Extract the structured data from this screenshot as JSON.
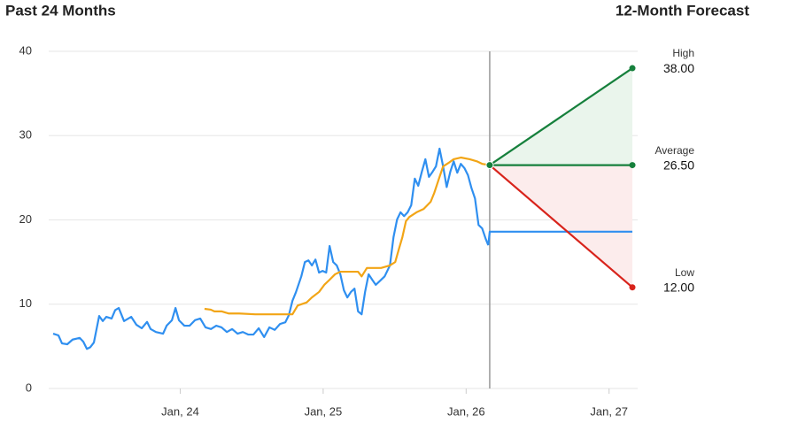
{
  "chart_data": {
    "type": "line",
    "title": "Past 24 Months",
    "forecast_title": "12-Month Forecast",
    "xlim": [
      2023.08,
      2027.2
    ],
    "xticks": [
      {
        "value": 2024,
        "label": "Jan, 24"
      },
      {
        "value": 2025,
        "label": "Jan, 25"
      },
      {
        "value": 2026,
        "label": "Jan, 26"
      },
      {
        "value": 2027,
        "label": "Jan, 27"
      }
    ],
    "ylim": [
      0,
      40
    ],
    "yticks": [
      0,
      10,
      20,
      30,
      40
    ],
    "grid": true,
    "series": [
      {
        "color": "#2f8ff0",
        "x": [
          2023.111,
          2023.148,
          2023.173,
          2023.21,
          2023.247,
          2023.297,
          2023.322,
          2023.347,
          2023.371,
          2023.396,
          2023.433,
          2023.458,
          2023.483,
          2023.52,
          2023.545,
          2023.57,
          2023.607,
          2023.657,
          2023.694,
          2023.731,
          2023.768,
          2023.793,
          2023.83,
          2023.88,
          2023.905,
          2023.942,
          2023.967,
          2023.991,
          2024.029,
          2024.066,
          2024.103,
          2024.14,
          2024.177,
          2024.215,
          2024.252,
          2024.289,
          2024.326,
          2024.363,
          2024.401,
          2024.438,
          2024.475,
          2024.512,
          2024.549,
          2024.587,
          2024.624,
          2024.661,
          2024.698,
          2024.735,
          2024.76,
          2024.785,
          2024.81,
          2024.847,
          2024.872,
          2024.897,
          2024.921,
          2024.946,
          2024.971,
          2024.996,
          2025.021,
          2025.045,
          2025.07,
          2025.095,
          2025.12,
          2025.145,
          2025.169,
          2025.194,
          2025.219,
          2025.244,
          2025.269,
          2025.293,
          2025.318,
          2025.343,
          2025.368,
          2025.393,
          2025.43,
          2025.467,
          2025.492,
          2025.517,
          2025.541,
          2025.566,
          2025.591,
          2025.616,
          2025.641,
          2025.665,
          2025.69,
          2025.715,
          2025.74,
          2025.765,
          2025.789,
          2025.814,
          2025.839,
          2025.864,
          2025.889,
          2025.913,
          2025.938,
          2025.963,
          2025.988,
          2026.013,
          2026.037,
          2026.062,
          2026.087,
          2026.112,
          2026.137,
          2026.155
        ],
        "values": [
          6.5,
          6.3,
          5.35,
          5.25,
          5.8,
          6.0,
          5.55,
          4.7,
          4.9,
          5.45,
          8.6,
          8.0,
          8.5,
          8.3,
          9.3,
          9.55,
          8.0,
          8.5,
          7.55,
          7.15,
          7.9,
          7.05,
          6.7,
          6.5,
          7.45,
          8.1,
          9.55,
          8.1,
          7.45,
          7.45,
          8.1,
          8.3,
          7.25,
          7.05,
          7.45,
          7.25,
          6.7,
          7.05,
          6.5,
          6.7,
          6.4,
          6.4,
          7.15,
          6.1,
          7.25,
          6.95,
          7.65,
          7.85,
          8.7,
          10.4,
          11.45,
          13.3,
          15.0,
          15.2,
          14.6,
          15.3,
          13.75,
          13.95,
          13.75,
          16.9,
          15.0,
          14.6,
          13.55,
          11.65,
          10.8,
          11.45,
          11.85,
          9.15,
          8.8,
          11.45,
          13.55,
          12.9,
          12.3,
          12.7,
          13.3,
          14.6,
          17.95,
          20.05,
          20.9,
          20.45,
          20.9,
          21.75,
          24.9,
          24.05,
          25.7,
          27.2,
          25.1,
          25.7,
          26.35,
          28.45,
          26.35,
          23.9,
          25.7,
          26.95,
          25.6,
          26.65,
          26.15,
          25.3,
          23.8,
          22.55,
          19.4,
          19.0,
          17.75,
          17.0
        ]
      },
      {
        "color": "#f2a516",
        "x": [
          2024.17,
          2024.214,
          2024.239,
          2024.289,
          2024.338,
          2024.413,
          2024.524,
          2024.599,
          2024.785,
          2024.822,
          2024.884,
          2024.921,
          2024.971,
          2025.008,
          2025.045,
          2025.083,
          2025.12,
          2025.244,
          2025.269,
          2025.306,
          2025.405,
          2025.467,
          2025.504,
          2025.529,
          2025.554,
          2025.579,
          2025.603,
          2025.653,
          2025.703,
          2025.752,
          2025.777,
          2025.814,
          2025.839,
          2025.876,
          2025.913,
          2025.963,
          2026.025,
          2026.075,
          2026.112,
          2026.149
        ],
        "values": [
          9.45,
          9.35,
          9.15,
          9.15,
          8.9,
          8.9,
          8.8,
          8.8,
          8.8,
          9.85,
          10.2,
          10.8,
          11.45,
          12.3,
          12.9,
          13.55,
          13.85,
          13.85,
          13.3,
          14.3,
          14.3,
          14.6,
          15.0,
          16.5,
          17.95,
          19.85,
          20.35,
          20.9,
          21.3,
          22.15,
          23.2,
          25.1,
          26.35,
          26.75,
          27.2,
          27.4,
          27.2,
          26.95,
          26.65,
          26.55
        ]
      },
      {
        "color": "#2f8ff0",
        "x": [
          2026.155,
          2026.165,
          2027.163
        ],
        "values": [
          17.0,
          18.6,
          18.6
        ]
      }
    ],
    "forecast": {
      "x": [
        2026.165,
        2027.163
      ],
      "start": 26.5,
      "targets": [
        {
          "label": "High",
          "value": 38,
          "value_label": "38.00",
          "color": "#16803c",
          "fill": "#eaf5ec"
        },
        {
          "label": "Average",
          "value": 26.5,
          "value_label": "26.50",
          "color": "#16803c"
        },
        {
          "label": "Low",
          "value": 12,
          "value_label": "12.00",
          "color": "#d8231b",
          "fill": "#fcecec"
        }
      ]
    }
  }
}
